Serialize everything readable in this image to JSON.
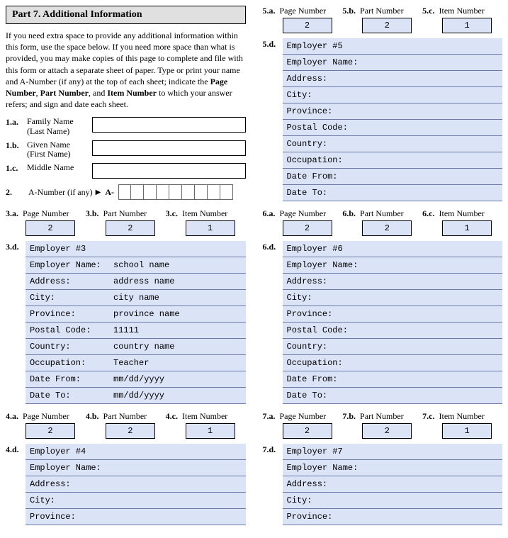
{
  "header": "Part 7.  Additional Information",
  "instructions_plain_start": "If you need extra space to provide any additional information within this form, use the space below.  If you need more space than what is provided, you may make copies of this page to complete and file with this form or attach a separate sheet of paper.  Type or print your name and A-Number (if any) at the top of each sheet; indicate the ",
  "instructions_bold1": "Page Number",
  "instructions_sep1": ", ",
  "instructions_bold2": "Part Number",
  "instructions_sep2": ", and ",
  "instructions_bold3": "Item Number",
  "instructions_plain_end": " to which your answer refers; and sign and date each sheet.",
  "names": {
    "family_idx": "1.a.",
    "family_label": "Family Name (Last Name)",
    "given_idx": "1.b.",
    "given_label": "Given Name (First Name)",
    "middle_idx": "1.c.",
    "middle_label": "Middle Name"
  },
  "anum": {
    "idx": "2.",
    "label": "A-Number (if any)",
    "prefix": "A-"
  },
  "trio_labels": {
    "page": "Page Number",
    "part": "Part Number",
    "item": "Item Number"
  },
  "field_labels": {
    "employer_name": "Employer Name:",
    "address": "Address:",
    "city": "City:",
    "province": "Province:",
    "postal": "Postal Code:",
    "country": "Country:",
    "occupation": "Occupation:",
    "date_from": "Date From:",
    "date_to": "Date To:"
  },
  "sections": {
    "s3": {
      "a": "3.a.",
      "b": "3.b.",
      "c": "3.c.",
      "d": "3.d.",
      "page": "2",
      "part": "2",
      "item": "1",
      "title": "Employer #3",
      "vals": {
        "employer_name": "school name",
        "address": "address name",
        "city": "city name",
        "province": "province name",
        "postal": "11111",
        "country": "country name",
        "occupation": "Teacher",
        "date_from": "mm/dd/yyyy",
        "date_to": "mm/dd/yyyy"
      }
    },
    "s4": {
      "a": "4.a.",
      "b": "4.b.",
      "c": "4.c.",
      "d": "4.d.",
      "page": "2",
      "part": "2",
      "item": "1",
      "title": "Employer #4",
      "vals": {
        "employer_name": "",
        "address": "",
        "city": "",
        "province": ""
      }
    },
    "s5": {
      "a": "5.a.",
      "b": "5.b.",
      "c": "5.c.",
      "d": "5.d.",
      "page": "2",
      "part": "2",
      "item": "1",
      "title": "Employer #5",
      "vals": {
        "employer_name": "",
        "address": "",
        "city": "",
        "province": "",
        "postal": "",
        "country": "",
        "occupation": "",
        "date_from": "",
        "date_to": ""
      }
    },
    "s6": {
      "a": "6.a.",
      "b": "6.b.",
      "c": "6.c.",
      "d": "6.d.",
      "page": "2",
      "part": "2",
      "item": "1",
      "title": "Employer #6",
      "vals": {
        "employer_name": "",
        "address": "",
        "city": "",
        "province": "",
        "postal": "",
        "country": "",
        "occupation": "",
        "date_from": "",
        "date_to": ""
      }
    },
    "s7": {
      "a": "7.a.",
      "b": "7.b.",
      "c": "7.c.",
      "d": "7.d.",
      "page": "2",
      "part": "2",
      "item": "1",
      "title": "Employer #7",
      "vals": {
        "employer_name": "",
        "address": "",
        "city": "",
        "province": ""
      }
    }
  }
}
